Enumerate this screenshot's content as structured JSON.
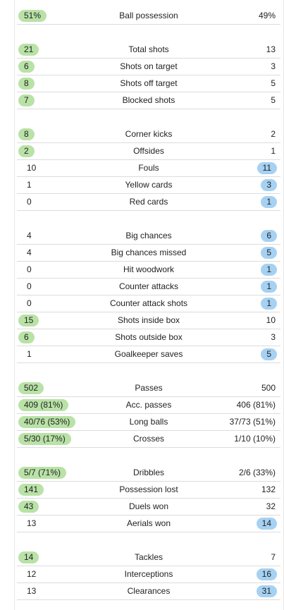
{
  "colors": {
    "home_highlight": "#b9e2a7",
    "away_highlight": "#a6d1f2",
    "divider": "#dcdcdc"
  },
  "groups": [
    {
      "rows": [
        {
          "label": "Ball possession",
          "home": "51%",
          "away": "49%",
          "hl": "home"
        }
      ]
    },
    {
      "rows": [
        {
          "label": "Total shots",
          "home": "21",
          "away": "13",
          "hl": "home"
        },
        {
          "label": "Shots on target",
          "home": "6",
          "away": "3",
          "hl": "home"
        },
        {
          "label": "Shots off target",
          "home": "8",
          "away": "5",
          "hl": "home"
        },
        {
          "label": "Blocked shots",
          "home": "7",
          "away": "5",
          "hl": "home"
        }
      ]
    },
    {
      "rows": [
        {
          "label": "Corner kicks",
          "home": "8",
          "away": "2",
          "hl": "home"
        },
        {
          "label": "Offsides",
          "home": "2",
          "away": "1",
          "hl": "home"
        },
        {
          "label": "Fouls",
          "home": "10",
          "away": "11",
          "hl": "away"
        },
        {
          "label": "Yellow cards",
          "home": "1",
          "away": "3",
          "hl": "away"
        },
        {
          "label": "Red cards",
          "home": "0",
          "away": "1",
          "hl": "away"
        }
      ]
    },
    {
      "rows": [
        {
          "label": "Big chances",
          "home": "4",
          "away": "6",
          "hl": "away"
        },
        {
          "label": "Big chances missed",
          "home": "4",
          "away": "5",
          "hl": "away"
        },
        {
          "label": "Hit woodwork",
          "home": "0",
          "away": "1",
          "hl": "away"
        },
        {
          "label": "Counter attacks",
          "home": "0",
          "away": "1",
          "hl": "away"
        },
        {
          "label": "Counter attack shots",
          "home": "0",
          "away": "1",
          "hl": "away"
        },
        {
          "label": "Shots inside box",
          "home": "15",
          "away": "10",
          "hl": "home"
        },
        {
          "label": "Shots outside box",
          "home": "6",
          "away": "3",
          "hl": "home"
        },
        {
          "label": "Goalkeeper saves",
          "home": "1",
          "away": "5",
          "hl": "away"
        }
      ]
    },
    {
      "rows": [
        {
          "label": "Passes",
          "home": "502",
          "away": "500",
          "hl": "home"
        },
        {
          "label": "Acc. passes",
          "home": "409 (81%)",
          "away": "406 (81%)",
          "hl": "home"
        },
        {
          "label": "Long balls",
          "home": "40/76 (53%)",
          "away": "37/73 (51%)",
          "hl": "home"
        },
        {
          "label": "Crosses",
          "home": "5/30 (17%)",
          "away": "1/10 (10%)",
          "hl": "home"
        }
      ]
    },
    {
      "rows": [
        {
          "label": "Dribbles",
          "home": "5/7 (71%)",
          "away": "2/6 (33%)",
          "hl": "home"
        },
        {
          "label": "Possession lost",
          "home": "141",
          "away": "132",
          "hl": "home"
        },
        {
          "label": "Duels won",
          "home": "43",
          "away": "32",
          "hl": "home"
        },
        {
          "label": "Aerials won",
          "home": "13",
          "away": "14",
          "hl": "away"
        }
      ]
    },
    {
      "rows": [
        {
          "label": "Tackles",
          "home": "14",
          "away": "7",
          "hl": "home"
        },
        {
          "label": "Interceptions",
          "home": "12",
          "away": "16",
          "hl": "away"
        },
        {
          "label": "Clearances",
          "home": "13",
          "away": "31",
          "hl": "away"
        }
      ]
    }
  ]
}
